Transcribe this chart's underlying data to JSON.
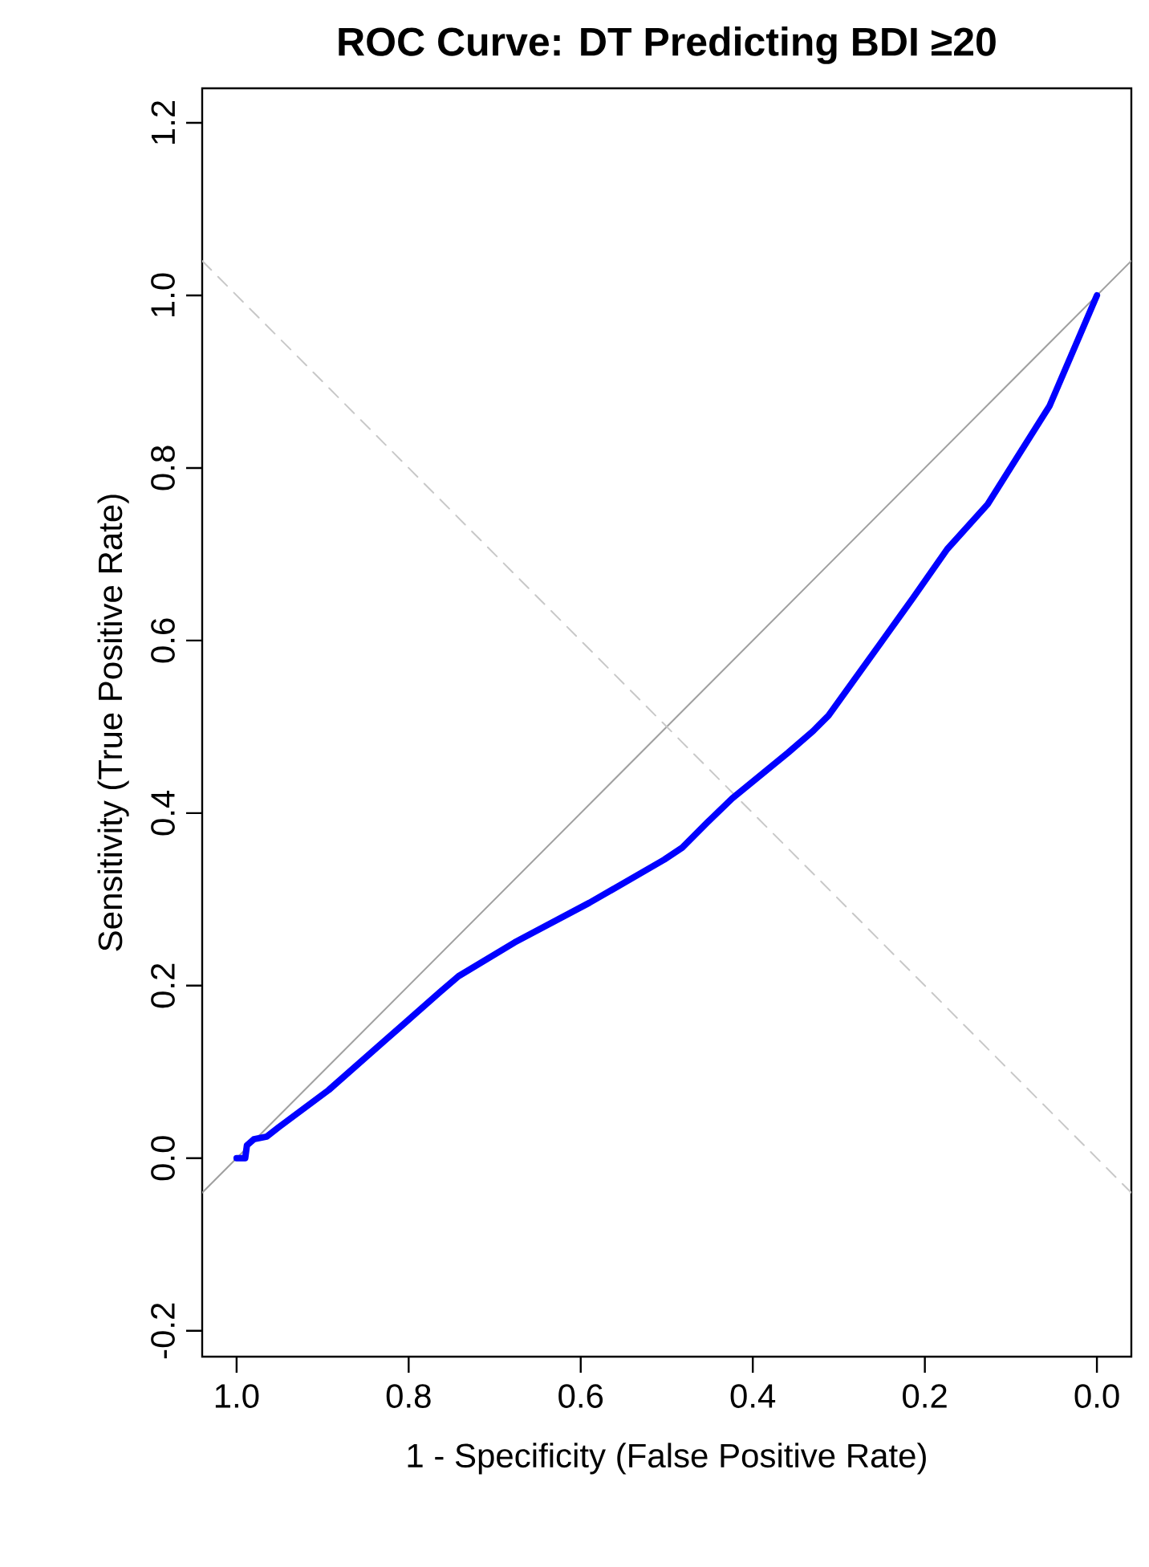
{
  "chart_data": {
    "type": "line",
    "title": "ROC Curve: DT Predicting BDI ≥20",
    "xlabel": "1 - Specificity (False Positive Rate)",
    "ylabel": "Sensitivity (True Positive Rate)",
    "xlim": [
      1.04,
      -0.04
    ],
    "ylim": [
      -0.23,
      1.24
    ],
    "xticks": [
      {
        "value": 1,
        "label": "1.0"
      },
      {
        "value": 0.8,
        "label": "0.8"
      },
      {
        "value": 0.6,
        "label": "0.6"
      },
      {
        "value": 0.4,
        "label": "0.4"
      },
      {
        "value": 0.2,
        "label": "0.2"
      },
      {
        "value": 0,
        "label": "0.0"
      }
    ],
    "yticks": [
      {
        "value": -0.2,
        "label": "-0.2"
      },
      {
        "value": 0,
        "label": "0.0"
      },
      {
        "value": 0.2,
        "label": "0.2"
      },
      {
        "value": 0.4,
        "label": "0.4"
      },
      {
        "value": 0.6,
        "label": "0.6"
      },
      {
        "value": 0.8,
        "label": "0.8"
      },
      {
        "value": 1,
        "label": "1.0"
      },
      {
        "value": 1.2,
        "label": "1.2"
      }
    ],
    "series": [
      {
        "color": "#a0a0a0",
        "line_style": "solid",
        "x": [
          1.04,
          -0.04
        ],
        "values": [
          -0.04,
          1.04
        ]
      },
      {
        "color": "#c8c8c8",
        "line_style": "dashed",
        "x": [
          1.04,
          -0.04
        ],
        "values": [
          1.04,
          -0.04
        ]
      },
      {
        "color": "#0000ff",
        "line_style": "solid",
        "x": [
          1.0,
          0.99,
          0.988,
          0.98,
          0.965,
          0.951,
          0.893,
          0.828,
          0.763,
          0.742,
          0.677,
          0.59,
          0.503,
          0.482,
          0.453,
          0.424,
          0.359,
          0.33,
          0.312,
          0.286,
          0.25,
          0.214,
          0.174,
          0.127,
          0.055,
          0.0
        ],
        "values": [
          0.0,
          0.0,
          0.015,
          0.022,
          0.025,
          0.036,
          0.079,
          0.136,
          0.193,
          0.211,
          0.25,
          0.296,
          0.346,
          0.36,
          0.389,
          0.417,
          0.47,
          0.495,
          0.513,
          0.549,
          0.599,
          0.649,
          0.706,
          0.758,
          0.872,
          1.0
        ]
      }
    ]
  }
}
